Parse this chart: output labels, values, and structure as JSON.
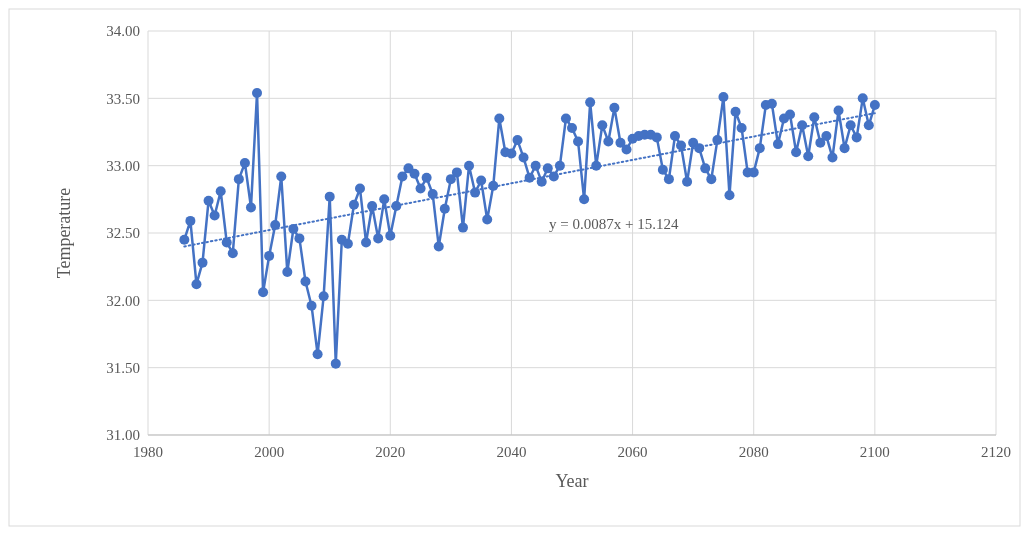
{
  "chart_data": {
    "type": "line",
    "xlabel": "Year",
    "ylabel": "Temperature",
    "xlim": [
      1980,
      2120
    ],
    "xticks": [
      1980,
      2000,
      2020,
      2040,
      2060,
      2080,
      2100,
      2120
    ],
    "ylim": [
      31,
      34
    ],
    "yticks": [
      {
        "value": 31,
        "label": "31.00"
      },
      {
        "value": 31.5,
        "label": "31.50"
      },
      {
        "value": 32,
        "label": "32.00"
      },
      {
        "value": 32.5,
        "label": "32.50"
      },
      {
        "value": 33,
        "label": "33.00"
      },
      {
        "value": 33.5,
        "label": "33.50"
      },
      {
        "value": 34,
        "label": "34.00"
      }
    ],
    "grid": true,
    "series": [
      {
        "color": "#4472c4",
        "marker": "circle",
        "line_style": "solid",
        "x": [
          1986,
          1987,
          1988,
          1989,
          1990,
          1991,
          1992,
          1993,
          1994,
          1995,
          1996,
          1997,
          1998,
          1999,
          2000,
          2001,
          2002,
          2003,
          2004,
          2005,
          2006,
          2007,
          2008,
          2009,
          2010,
          2011,
          2012,
          2013,
          2014,
          2015,
          2016,
          2017,
          2018,
          2019,
          2020,
          2021,
          2022,
          2023,
          2024,
          2025,
          2026,
          2027,
          2028,
          2029,
          2030,
          2031,
          2032,
          2033,
          2034,
          2035,
          2036,
          2037,
          2038,
          2039,
          2040,
          2041,
          2042,
          2043,
          2044,
          2045,
          2046,
          2047,
          2048,
          2049,
          2050,
          2051,
          2052,
          2053,
          2054,
          2055,
          2056,
          2057,
          2058,
          2059,
          2060,
          2061,
          2062,
          2063,
          2064,
          2065,
          2066,
          2067,
          2068,
          2069,
          2070,
          2071,
          2072,
          2073,
          2074,
          2075,
          2076,
          2077,
          2078,
          2079,
          2080,
          2081,
          2082,
          2083,
          2084,
          2085,
          2086,
          2087,
          2088,
          2089,
          2090,
          2091,
          2092,
          2093,
          2094,
          2095,
          2096,
          2097,
          2098,
          2099,
          2100
        ],
        "values": [
          32.45,
          32.59,
          32.12,
          32.28,
          32.74,
          32.63,
          32.81,
          32.43,
          32.35,
          32.9,
          33.02,
          32.69,
          33.54,
          32.06,
          32.33,
          32.56,
          32.92,
          32.21,
          32.53,
          32.46,
          32.14,
          31.96,
          31.6,
          32.03,
          32.77,
          31.53,
          32.45,
          32.42,
          32.71,
          32.83,
          32.43,
          32.7,
          32.46,
          32.75,
          32.48,
          32.7,
          32.92,
          32.98,
          32.94,
          32.83,
          32.91,
          32.79,
          32.4,
          32.68,
          32.9,
          32.95,
          32.54,
          33.0,
          32.8,
          32.89,
          32.6,
          32.85,
          33.35,
          33.1,
          33.09,
          33.19,
          33.06,
          32.91,
          33.0,
          32.88,
          32.98,
          32.92,
          33.0,
          33.35,
          33.28,
          33.18,
          32.75,
          33.47,
          33.0,
          33.3,
          33.18,
          33.43,
          33.17,
          33.12,
          33.2,
          33.22,
          33.23,
          33.23,
          33.21,
          32.97,
          32.9,
          33.22,
          33.15,
          32.88,
          33.17,
          33.13,
          32.98,
          32.9,
          33.19,
          33.51,
          32.78,
          33.4,
          33.28,
          32.95,
          32.95,
          33.13,
          33.45,
          33.46,
          33.16,
          33.35,
          33.38,
          33.1,
          33.3,
          33.07,
          33.36,
          33.17,
          33.22,
          33.06,
          33.41,
          33.13,
          33.3,
          33.21,
          33.5,
          33.3,
          33.45
        ]
      },
      {
        "color": "#4472c4",
        "marker": "none",
        "line_style": "dotted",
        "x": [
          1986,
          2100
        ],
        "values": [
          32.4,
          33.39
        ]
      }
    ],
    "annotations": [
      "y = 0.0087x + 15.124"
    ]
  }
}
